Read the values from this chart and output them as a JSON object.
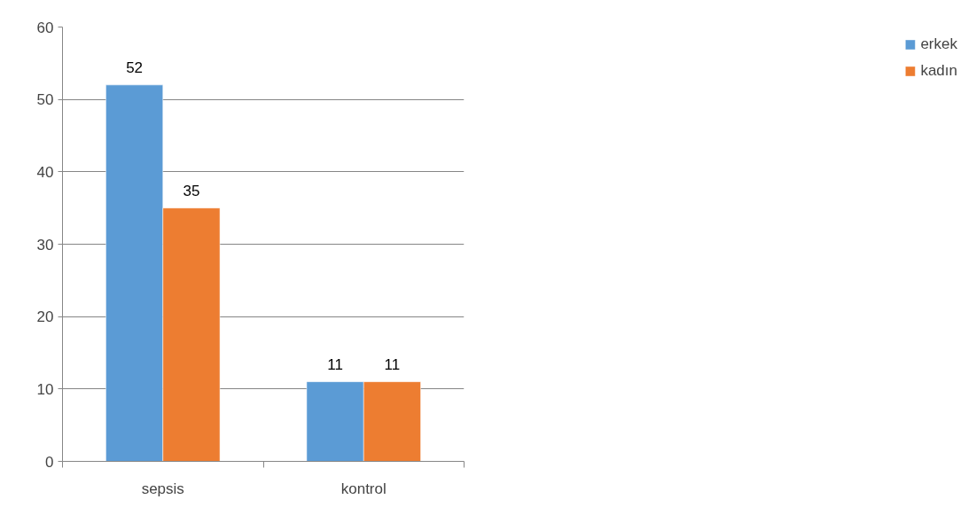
{
  "chart_data": {
    "type": "bar",
    "categories": [
      "sepsis",
      "kontrol"
    ],
    "series": [
      {
        "name": "erkek",
        "color": "#5b9bd5",
        "values": [
          52,
          11
        ]
      },
      {
        "name": "kadın",
        "color": "#ed7d31",
        "values": [
          35,
          11
        ]
      }
    ],
    "ylim": [
      0,
      60
    ],
    "yticks": [
      0,
      10,
      20,
      30,
      40,
      50,
      60
    ],
    "grid": "y",
    "legend": "right",
    "data_labels": true
  }
}
